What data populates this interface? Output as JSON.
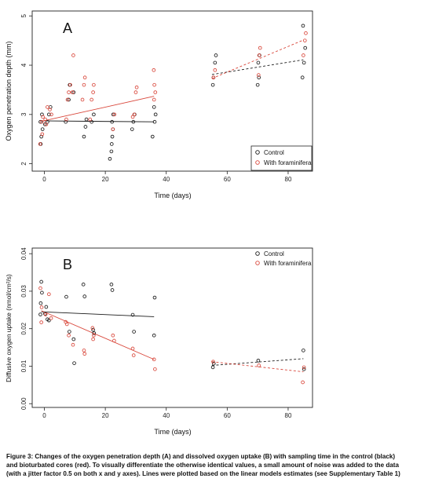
{
  "colors": {
    "control": "#1a1a1a",
    "foram": "#d9473b"
  },
  "chart_data": [
    {
      "type": "scatter",
      "panel_label": "A",
      "xlabel": "Time (days)",
      "ylabel": "Oxygen penetration depth (mm)",
      "xlim": [
        -4,
        88
      ],
      "ylim": [
        1.85,
        5.1
      ],
      "xticks": [
        "0",
        "20",
        "40",
        "60",
        "80"
      ],
      "yticks": [
        "2",
        "3",
        "4",
        "5"
      ],
      "legend": {
        "position": "bottom-right",
        "entries": [
          "Control",
          "With foraminifera"
        ]
      },
      "series": [
        {
          "name": "Control",
          "color": "#1a1a1a",
          "points": [
            [
              -1.2,
              2.4
            ],
            [
              -1,
              2.55
            ],
            [
              -0.6,
              2.7
            ],
            [
              -1.3,
              2.85
            ],
            [
              -0.8,
              3.0
            ],
            [
              0.2,
              2.8
            ],
            [
              1,
              2.85
            ],
            [
              1.5,
              3.0
            ],
            [
              2,
              3.15
            ],
            [
              7,
              2.85
            ],
            [
              8,
              3.3
            ],
            [
              8.3,
              3.6
            ],
            [
              9.6,
              3.45
            ],
            [
              13,
              2.55
            ],
            [
              13.5,
              2.75
            ],
            [
              13.8,
              2.9
            ],
            [
              15.5,
              2.85
            ],
            [
              16.2,
              3.0
            ],
            [
              21.5,
              2.1
            ],
            [
              22,
              2.25
            ],
            [
              22.1,
              2.4
            ],
            [
              22.3,
              2.55
            ],
            [
              22.5,
              2.7
            ],
            [
              22.2,
              2.85
            ],
            [
              22.6,
              3.0
            ],
            [
              28.8,
              2.7
            ],
            [
              29.2,
              2.85
            ],
            [
              29.6,
              3.0
            ],
            [
              35.5,
              2.55
            ],
            [
              36.2,
              2.85
            ],
            [
              36.5,
              3.0
            ],
            [
              36,
              3.15
            ],
            [
              55.3,
              3.6
            ],
            [
              55.5,
              3.75
            ],
            [
              56,
              4.05
            ],
            [
              56.3,
              4.2
            ],
            [
              70,
              3.6
            ],
            [
              70.4,
              3.75
            ],
            [
              70.2,
              4.05
            ],
            [
              70.6,
              4.2
            ],
            [
              84.7,
              3.75
            ],
            [
              85.2,
              4.05
            ],
            [
              85.6,
              4.35
            ],
            [
              84.9,
              4.8
            ]
          ],
          "trend": {
            "x": [
              -1,
              36
            ],
            "y": [
              2.87,
              2.85
            ],
            "style": "solid"
          },
          "trend2": {
            "x": [
              55,
              85
            ],
            "y": [
              3.81,
              4.11
            ],
            "style": "dashed"
          }
        },
        {
          "name": "With foraminifera",
          "color": "#d9473b",
          "points": [
            [
              -1.4,
              2.4
            ],
            [
              -0.7,
              2.6
            ],
            [
              -0.9,
              2.85
            ],
            [
              -0.5,
              2.95
            ],
            [
              0.3,
              2.9
            ],
            [
              1,
              3.15
            ],
            [
              1.8,
              3.1
            ],
            [
              2.3,
              3.0
            ],
            [
              0.6,
              2.8
            ],
            [
              7.2,
              2.9
            ],
            [
              7.6,
              3.3
            ],
            [
              8,
              3.45
            ],
            [
              8.5,
              3.6
            ],
            [
              9.2,
              3.45
            ],
            [
              9.5,
              4.2
            ],
            [
              12.5,
              3.3
            ],
            [
              13,
              3.6
            ],
            [
              13.3,
              3.75
            ],
            [
              15,
              2.9
            ],
            [
              15.5,
              3.3
            ],
            [
              16,
              3.45
            ],
            [
              16.2,
              3.6
            ],
            [
              22.5,
              2.7
            ],
            [
              23,
              3.0
            ],
            [
              29,
              2.95
            ],
            [
              29.5,
              3.0
            ],
            [
              30,
              3.45
            ],
            [
              30.3,
              3.55
            ],
            [
              36,
              3.3
            ],
            [
              36.4,
              3.45
            ],
            [
              36.1,
              3.6
            ],
            [
              35.9,
              3.9
            ],
            [
              55.5,
              3.75
            ],
            [
              56,
              3.9
            ],
            [
              70.3,
              3.8
            ],
            [
              70.5,
              4.2
            ],
            [
              70.8,
              4.35
            ],
            [
              85,
              4.2
            ],
            [
              85.5,
              4.5
            ],
            [
              85.8,
              4.65
            ]
          ],
          "trend": {
            "x": [
              -1,
              36
            ],
            "y": [
              2.86,
              3.37
            ],
            "style": "solid"
          },
          "trend2": {
            "x": [
              55,
              85
            ],
            "y": [
              3.73,
              4.51
            ],
            "style": "dashed"
          }
        }
      ]
    },
    {
      "type": "scatter",
      "panel_label": "B",
      "xlabel": "Time (days)",
      "ylabel": "Diffusive oxygen uptake (nmol/cm²/s)",
      "xlim": [
        -4,
        88
      ],
      "ylim": [
        -0.001,
        0.0415
      ],
      "xticks": [
        "0",
        "20",
        "40",
        "60",
        "80"
      ],
      "yticks": [
        "0.00",
        "0.01",
        "0.02",
        "0.03",
        "0.04"
      ],
      "legend": {
        "position": "top-right",
        "entries": [
          "Control",
          "With foraminifera"
        ]
      },
      "series": [
        {
          "name": "Control",
          "color": "#1a1a1a",
          "points": [
            [
              -1,
              0.0325
            ],
            [
              -0.8,
              0.0296
            ],
            [
              -1.2,
              0.0268
            ],
            [
              -1.3,
              0.0238
            ],
            [
              0.2,
              0.024
            ],
            [
              0.6,
              0.0258
            ],
            [
              1,
              0.0225
            ],
            [
              1.5,
              0.0222
            ],
            [
              7.2,
              0.0285
            ],
            [
              8.2,
              0.0192
            ],
            [
              9.6,
              0.0172
            ],
            [
              9.8,
              0.0108
            ],
            [
              12.8,
              0.0318
            ],
            [
              13.2,
              0.0286
            ],
            [
              16,
              0.0197
            ],
            [
              16.3,
              0.0188
            ],
            [
              22,
              0.0318
            ],
            [
              22.3,
              0.0303
            ],
            [
              29,
              0.0237
            ],
            [
              29.4,
              0.0192
            ],
            [
              36.2,
              0.0283
            ],
            [
              36,
              0.0182
            ],
            [
              55.3,
              0.0097
            ],
            [
              55.6,
              0.0107
            ],
            [
              70.2,
              0.0115
            ],
            [
              85,
              0.0142
            ],
            [
              85.2,
              0.0092
            ]
          ],
          "trend": {
            "x": [
              -1,
              36
            ],
            "y": [
              0.0245,
              0.0232
            ],
            "style": "solid"
          },
          "trend2": {
            "x": [
              55,
              85
            ],
            "y": [
              0.0102,
              0.012
            ],
            "style": "dashed"
          }
        },
        {
          "name": "With foraminifera",
          "color": "#d9473b",
          "points": [
            [
              -1.3,
              0.0308
            ],
            [
              -0.9,
              0.0257
            ],
            [
              -1,
              0.0217
            ],
            [
              0.4,
              0.0238
            ],
            [
              1.5,
              0.0292
            ],
            [
              2.2,
              0.0228
            ],
            [
              7,
              0.0218
            ],
            [
              7.4,
              0.0212
            ],
            [
              8,
              0.0182
            ],
            [
              9.4,
              0.0157
            ],
            [
              13,
              0.0142
            ],
            [
              13.2,
              0.0133
            ],
            [
              15.8,
              0.0202
            ],
            [
              16.2,
              0.0182
            ],
            [
              16,
              0.0172
            ],
            [
              22.5,
              0.0182
            ],
            [
              22.9,
              0.0168
            ],
            [
              29,
              0.0147
            ],
            [
              29.3,
              0.0129
            ],
            [
              36,
              0.0118
            ],
            [
              36.3,
              0.0092
            ],
            [
              55.4,
              0.0112
            ],
            [
              70.4,
              0.0102
            ],
            [
              84.8,
              0.0057
            ],
            [
              85.2,
              0.0097
            ]
          ],
          "trend": {
            "x": [
              -1,
              36
            ],
            "y": [
              0.0248,
              0.0118
            ],
            "style": "solid"
          },
          "trend2": {
            "x": [
              55,
              85
            ],
            "y": [
              0.0112,
              0.0085
            ],
            "style": "dashed"
          }
        }
      ]
    }
  ],
  "caption": {
    "line1": "Figure 3: Changes of the oxygen penetration depth (A) and dissolved oxygen uptake (B) with sampling time in the control (black)",
    "line2": "and bioturbated cores (red). To visually differentiate the otherwise identical values, a small amount of noise was added to the data",
    "line3": "(with a jitter factor 0.5 on both x and y axes). Lines were plotted based on the linear models estimates (see Supplementary Table 1)"
  }
}
